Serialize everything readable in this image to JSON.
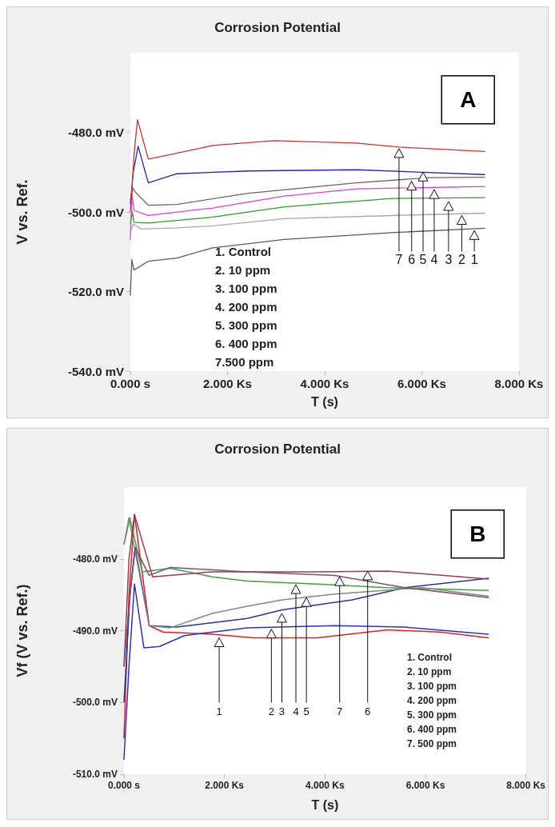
{
  "chart_data": [
    {
      "type": "line",
      "title": "Corrosion Potential",
      "xlabel": "T (s)",
      "ylabel": "V vs. Ref.",
      "xlim": [
        0,
        8
      ],
      "ylim": [
        -540,
        -460
      ],
      "xticks": [
        {
          "value": 0,
          "label": "0.000 s"
        },
        {
          "value": 2,
          "label": "2.000 Ks"
        },
        {
          "value": 4,
          "label": "4.000 Ks"
        },
        {
          "value": 6,
          "label": "6.000 Ks"
        },
        {
          "value": 8,
          "label": "8.000 Ks"
        }
      ],
      "yticks": [
        {
          "value": -540,
          "label": "-540.0 mV"
        },
        {
          "value": -520,
          "label": "-520.0 mV"
        },
        {
          "value": -500,
          "label": "-500.0 mV"
        },
        {
          "value": -480,
          "label": "-480.0 mV"
        }
      ],
      "series": [
        {
          "color": "#5a5a5a",
          "x": [
            0,
            0.03,
            0.074,
            0.369,
            0.959,
            1.696,
            3.171,
            5.383,
            7.301
          ],
          "values": [
            -521,
            -512,
            -514.6,
            -512.4,
            -511.6,
            -509,
            -506.9,
            -505.2,
            -504.1
          ]
        },
        {
          "color": "#a8a8a8",
          "x": [
            0,
            0.06,
            0.221,
            0.959,
            1.696,
            3.171,
            5.383,
            7.301
          ],
          "values": [
            -505,
            -503,
            -504.3,
            -504,
            -503.5,
            -501.7,
            -500.9,
            -500.3
          ]
        },
        {
          "color": "#2f9a2f",
          "x": [
            0,
            0.04,
            0.074,
            0.369,
            1.696,
            3.171,
            5.383,
            7.301
          ],
          "values": [
            -503,
            -500,
            -502.6,
            -502.8,
            -501.3,
            -498.7,
            -496.6,
            -496.4
          ]
        },
        {
          "color": "#e040d0",
          "x": [
            0,
            0.03,
            0.074,
            0.369,
            1.696,
            3.171,
            4.646,
            7.301
          ],
          "values": [
            -507,
            -495,
            -499.6,
            -500.9,
            -499,
            -496,
            -494.2,
            -493.6
          ]
        },
        {
          "color": "#2323b0",
          "x": [
            0,
            0.06,
            0.16,
            0.369,
            0.959,
            2.434,
            4.646,
            7.301
          ],
          "values": [
            -498,
            -490,
            -483.5,
            -492.7,
            -490.4,
            -489.7,
            -489.4,
            -490.6
          ]
        },
        {
          "color": "#7a5a6a",
          "x": [
            0,
            0.05,
            0.1,
            0.369,
            0.959,
            2.434,
            4.646,
            6.121,
            7.301
          ],
          "values": [
            -497,
            -494,
            -495,
            -498.3,
            -498.1,
            -495.3,
            -492.7,
            -491.4,
            -491.3
          ]
        },
        {
          "color": "#d03030",
          "x": [
            0,
            0.08,
            0.147,
            0.369,
            0.737,
            1.696,
            2.95,
            4.646,
            5.531,
            7.301
          ],
          "values": [
            -500,
            -485,
            -476.8,
            -486.7,
            -485.8,
            -483.3,
            -482.1,
            -482.7,
            -483.7,
            -484.8
          ]
        }
      ],
      "annotations": [
        "A",
        "1. Control",
        "2. 10 ppm",
        "3. 100 ppm",
        "4. 200 ppm",
        "5. 300 ppm",
        "6. 400 ppm",
        "7.500 ppm",
        {
          "text": "7",
          "x": 5.53,
          "y": -484.1
        },
        {
          "text": "6",
          "x": 5.79,
          "y": -492.3
        },
        {
          "text": "5",
          "x": 6.025,
          "y": -490
        },
        {
          "text": "4",
          "x": 6.254,
          "y": -494.4
        },
        {
          "text": "3",
          "x": 6.549,
          "y": -497.4
        },
        {
          "text": "2",
          "x": 6.822,
          "y": -500.9
        },
        {
          "text": "1",
          "x": 7.08,
          "y": -504.7
        }
      ]
    },
    {
      "type": "line",
      "title": "Corrosion Potential",
      "xlabel": "T (s)",
      "ylabel": "Vf (V vs. Ref.)",
      "xlim": [
        0,
        8
      ],
      "ylim": [
        -510,
        -470
      ],
      "xticks": [
        {
          "value": 0,
          "label": "0.000 s"
        },
        {
          "value": 2,
          "label": "2.000 Ks"
        },
        {
          "value": 4,
          "label": "4.000 Ks"
        },
        {
          "value": 6,
          "label": "6.000 Ks"
        },
        {
          "value": 8,
          "label": "8.000 Ks"
        }
      ],
      "yticks": [
        {
          "value": -510,
          "label": "-510.0 mV"
        },
        {
          "value": -500,
          "label": "-500.0 mV"
        },
        {
          "value": -490,
          "label": "-490.0 mV"
        },
        {
          "value": -480,
          "label": "-480.0 mV"
        }
      ],
      "series": [
        {
          "color": "#e02020",
          "x": [
            0,
            0.1,
            0.209,
            0.502,
            0.78,
            1.756,
            2.592,
            3.847,
            5.24,
            6.286,
            7.261
          ],
          "values": [
            -505,
            -485,
            -473.8,
            -489.3,
            -490.2,
            -490.5,
            -491,
            -491,
            -489.9,
            -490.2,
            -491
          ]
        },
        {
          "color": "#3030c0",
          "x": [
            0,
            0.1,
            0.209,
            0.397,
            0.711,
            1.199,
            2.453,
            4.195,
            5.589,
            7.261
          ],
          "values": [
            -508,
            -495,
            -483.5,
            -492.4,
            -492.2,
            -490.7,
            -489.6,
            -489.3,
            -489.5,
            -490.5
          ]
        },
        {
          "color": "#2a3590",
          "x": [
            0,
            0.12,
            0.223,
            0.502,
            1.059,
            2.453,
            3.15,
            4.544,
            5.589,
            7.261
          ],
          "values": [
            -500,
            -485,
            -478.4,
            -489.3,
            -489.5,
            -488.3,
            -487.1,
            -485.7,
            -484,
            -482.7
          ]
        },
        {
          "color": "#40a040",
          "x": [
            0,
            0.118,
            0.362,
            0.92,
            1.756,
            2.453,
            3.847,
            5.24,
            7.261
          ],
          "values": [
            -478,
            -474.3,
            -481.8,
            -481.3,
            -482.5,
            -483.1,
            -483.5,
            -484,
            -484.4
          ]
        },
        {
          "color": "#858585",
          "x": [
            0,
            0.098,
            0.502,
            0.92,
            1.756,
            2.453,
            3.15,
            4.195,
            5.937,
            7.261
          ],
          "values": [
            -478,
            -474.3,
            -489.3,
            -489.6,
            -487.6,
            -486.6,
            -485.7,
            -484.9,
            -484,
            -485.2
          ]
        },
        {
          "color": "#904050",
          "x": [
            0,
            0.1,
            0.209,
            0.571,
            1.756,
            3.847,
            5.24,
            7.261
          ],
          "values": [
            -495,
            -480,
            -473.8,
            -482.5,
            -481.8,
            -481.8,
            -481.7,
            -482.8
          ]
        },
        {
          "color": "#7a5070",
          "x": [
            0,
            0.12,
            0.223,
            0.502,
            0.92,
            2.453,
            4.195,
            5.589,
            7.261
          ],
          "values": [
            -495,
            -485,
            -478.4,
            -482.3,
            -481.2,
            -481.8,
            -482.3,
            -484,
            -485.4
          ]
        }
      ],
      "annotations": [
        "B",
        "1. Control",
        "2. 10 ppm",
        "3. 100 ppm",
        "4. 200 ppm",
        "5. 300 ppm",
        "6. 400 ppm",
        "7. 500 ppm",
        {
          "text": "1",
          "x": 1.895,
          "y": -491
        },
        {
          "text": "2",
          "x": 2.934,
          "y": -489.8
        },
        {
          "text": "3",
          "x": 3.143,
          "y": -487.6
        },
        {
          "text": "4",
          "x": 3.422,
          "y": -483.6
        },
        {
          "text": "5",
          "x": 3.631,
          "y": -485.4
        },
        {
          "text": "7",
          "x": 4.293,
          "y": -482.5
        },
        {
          "text": "6",
          "x": 4.85,
          "y": -481.7
        }
      ]
    }
  ]
}
